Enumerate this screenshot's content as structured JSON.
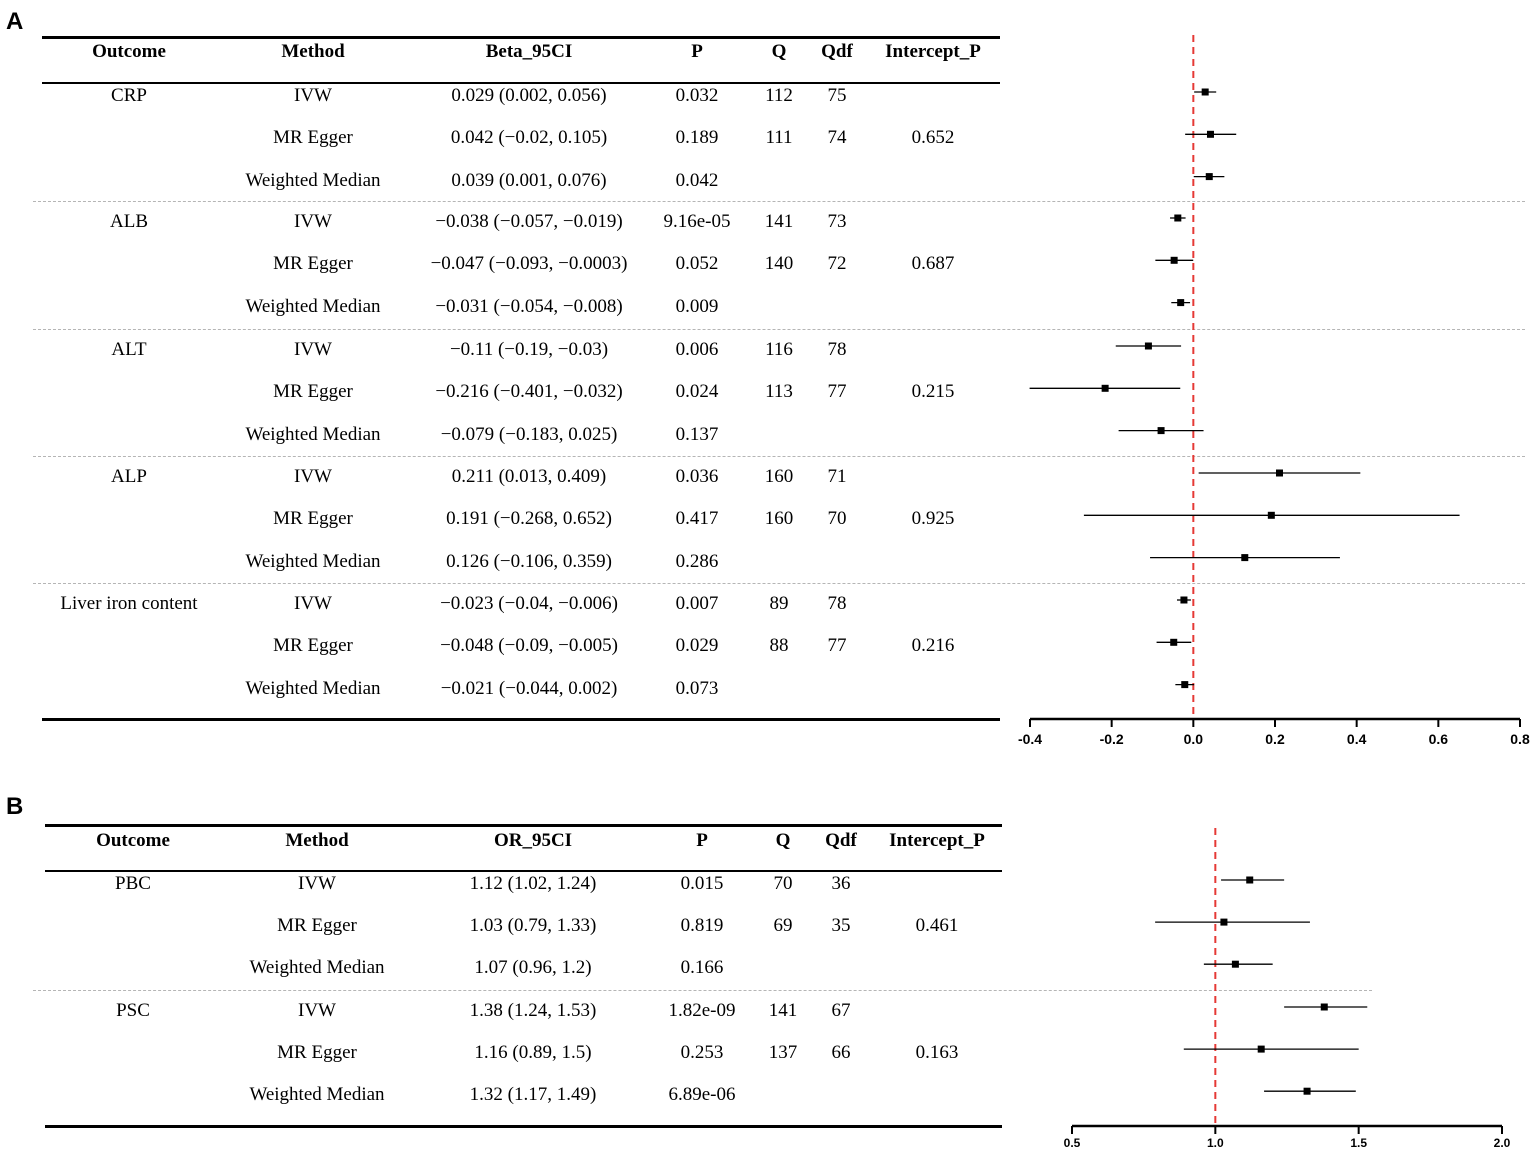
{
  "panels": [
    {
      "letter": "A",
      "headers": [
        "Outcome",
        "Method",
        "Beta_95CI",
        "P",
        "Q",
        "Qdf",
        "Intercept_P"
      ],
      "groups": [
        {
          "outcome": "CRP",
          "rows": [
            {
              "method": "IVW",
              "ci": "0.029 (0.002, 0.056)",
              "p": "0.032",
              "q": "112",
              "qdf": "75",
              "intercept_p": ""
            },
            {
              "method": "MR Egger",
              "ci": "0.042 (−0.02, 0.105)",
              "p": "0.189",
              "q": "111",
              "qdf": "74",
              "intercept_p": "0.652"
            },
            {
              "method": "Weighted Median",
              "ci": "0.039 (0.001, 0.076)",
              "p": "0.042",
              "q": "",
              "qdf": "",
              "intercept_p": ""
            }
          ]
        },
        {
          "outcome": "ALB",
          "rows": [
            {
              "method": "IVW",
              "ci": "−0.038 (−0.057, −0.019)",
              "p": "9.16e-05",
              "q": "141",
              "qdf": "73",
              "intercept_p": ""
            },
            {
              "method": "MR Egger",
              "ci": "−0.047 (−0.093, −0.0003)",
              "p": "0.052",
              "q": "140",
              "qdf": "72",
              "intercept_p": "0.687"
            },
            {
              "method": "Weighted Median",
              "ci": "−0.031 (−0.054, −0.008)",
              "p": "0.009",
              "q": "",
              "qdf": "",
              "intercept_p": ""
            }
          ]
        },
        {
          "outcome": "ALT",
          "rows": [
            {
              "method": "IVW",
              "ci": "−0.11 (−0.19, −0.03)",
              "p": "0.006",
              "q": "116",
              "qdf": "78",
              "intercept_p": ""
            },
            {
              "method": "MR Egger",
              "ci": "−0.216 (−0.401, −0.032)",
              "p": "0.024",
              "q": "113",
              "qdf": "77",
              "intercept_p": "0.215"
            },
            {
              "method": "Weighted Median",
              "ci": "−0.079 (−0.183, 0.025)",
              "p": "0.137",
              "q": "",
              "qdf": "",
              "intercept_p": ""
            }
          ]
        },
        {
          "outcome": "ALP",
          "rows": [
            {
              "method": "IVW",
              "ci": "0.211 (0.013, 0.409)",
              "p": "0.036",
              "q": "160",
              "qdf": "71",
              "intercept_p": ""
            },
            {
              "method": "MR Egger",
              "ci": "0.191 (−0.268, 0.652)",
              "p": "0.417",
              "q": "160",
              "qdf": "70",
              "intercept_p": "0.925"
            },
            {
              "method": "Weighted Median",
              "ci": "0.126 (−0.106, 0.359)",
              "p": "0.286",
              "q": "",
              "qdf": "",
              "intercept_p": ""
            }
          ]
        },
        {
          "outcome": "Liver iron content",
          "rows": [
            {
              "method": "IVW",
              "ci": "−0.023 (−0.04, −0.006)",
              "p": "0.007",
              "q": "89",
              "qdf": "78",
              "intercept_p": ""
            },
            {
              "method": "MR Egger",
              "ci": "−0.048 (−0.09, −0.005)",
              "p": "0.029",
              "q": "88",
              "qdf": "77",
              "intercept_p": "0.216"
            },
            {
              "method": "Weighted Median",
              "ci": "−0.021 (−0.044, 0.002)",
              "p": "0.073",
              "q": "",
              "qdf": "",
              "intercept_p": ""
            }
          ]
        }
      ]
    },
    {
      "letter": "B",
      "headers": [
        "Outcome",
        "Method",
        "OR_95CI",
        "P",
        "Q",
        "Qdf",
        "Intercept_P"
      ],
      "groups": [
        {
          "outcome": "PBC",
          "rows": [
            {
              "method": "IVW",
              "ci": "1.12 (1.02, 1.24)",
              "p": "0.015",
              "q": "70",
              "qdf": "36",
              "intercept_p": ""
            },
            {
              "method": "MR Egger",
              "ci": "1.03 (0.79, 1.33)",
              "p": "0.819",
              "q": "69",
              "qdf": "35",
              "intercept_p": "0.461"
            },
            {
              "method": "Weighted Median",
              "ci": "1.07 (0.96, 1.2)",
              "p": "0.166",
              "q": "",
              "qdf": "",
              "intercept_p": ""
            }
          ]
        },
        {
          "outcome": "PSC",
          "rows": [
            {
              "method": "IVW",
              "ci": "1.38 (1.24, 1.53)",
              "p": "1.82e-09",
              "q": "141",
              "qdf": "67",
              "intercept_p": ""
            },
            {
              "method": "MR Egger",
              "ci": "1.16 (0.89, 1.5)",
              "p": "0.253",
              "q": "137",
              "qdf": "66",
              "intercept_p": "0.163"
            },
            {
              "method": "Weighted Median",
              "ci": "1.32 (1.17, 1.49)",
              "p": "6.89e-06",
              "q": "",
              "qdf": "",
              "intercept_p": ""
            }
          ]
        }
      ]
    }
  ],
  "chart_data": [
    {
      "type": "scatter",
      "panel": "A",
      "title": "",
      "xlabel": "",
      "ylabel": "",
      "xlim": [
        -0.4,
        0.8
      ],
      "xticks": [
        "-0.4",
        "-0.2",
        "0.0",
        "0.2",
        "0.4",
        "0.6",
        "0.8"
      ],
      "xtick_values": [
        -0.4,
        -0.2,
        0.0,
        0.2,
        0.4,
        0.6,
        0.8
      ],
      "reference_line": 0,
      "reference_line_color": "#e53935",
      "point_color": "#000000",
      "points": [
        {
          "est": 0.029,
          "lo": 0.002,
          "hi": 0.056
        },
        {
          "est": 0.042,
          "lo": -0.02,
          "hi": 0.105
        },
        {
          "est": 0.039,
          "lo": 0.001,
          "hi": 0.076
        },
        {
          "est": -0.038,
          "lo": -0.057,
          "hi": -0.019
        },
        {
          "est": -0.047,
          "lo": -0.093,
          "hi": -0.0003
        },
        {
          "est": -0.031,
          "lo": -0.054,
          "hi": -0.008
        },
        {
          "est": -0.11,
          "lo": -0.19,
          "hi": -0.03
        },
        {
          "est": -0.216,
          "lo": -0.401,
          "hi": -0.032
        },
        {
          "est": -0.079,
          "lo": -0.183,
          "hi": 0.025
        },
        {
          "est": 0.211,
          "lo": 0.013,
          "hi": 0.409
        },
        {
          "est": 0.191,
          "lo": -0.268,
          "hi": 0.652
        },
        {
          "est": 0.126,
          "lo": -0.106,
          "hi": 0.359
        },
        {
          "est": -0.023,
          "lo": -0.04,
          "hi": -0.006
        },
        {
          "est": -0.048,
          "lo": -0.09,
          "hi": -0.005
        },
        {
          "est": -0.021,
          "lo": -0.044,
          "hi": 0.002
        }
      ]
    },
    {
      "type": "scatter",
      "panel": "B",
      "title": "",
      "xlabel": "",
      "ylabel": "",
      "xlim": [
        0.5,
        2.0
      ],
      "xticks": [
        "0.5",
        "1.0",
        "1.5",
        "2.0"
      ],
      "xtick_values": [
        0.5,
        1.0,
        1.5,
        2.0
      ],
      "reference_line": 1,
      "reference_line_color": "#e53935",
      "point_color": "#000000",
      "points": [
        {
          "est": 1.12,
          "lo": 1.02,
          "hi": 1.24
        },
        {
          "est": 1.03,
          "lo": 0.79,
          "hi": 1.33
        },
        {
          "est": 1.07,
          "lo": 0.96,
          "hi": 1.2
        },
        {
          "est": 1.38,
          "lo": 1.24,
          "hi": 1.53
        },
        {
          "est": 1.16,
          "lo": 0.89,
          "hi": 1.5
        },
        {
          "est": 1.32,
          "lo": 1.17,
          "hi": 1.49
        }
      ]
    }
  ]
}
